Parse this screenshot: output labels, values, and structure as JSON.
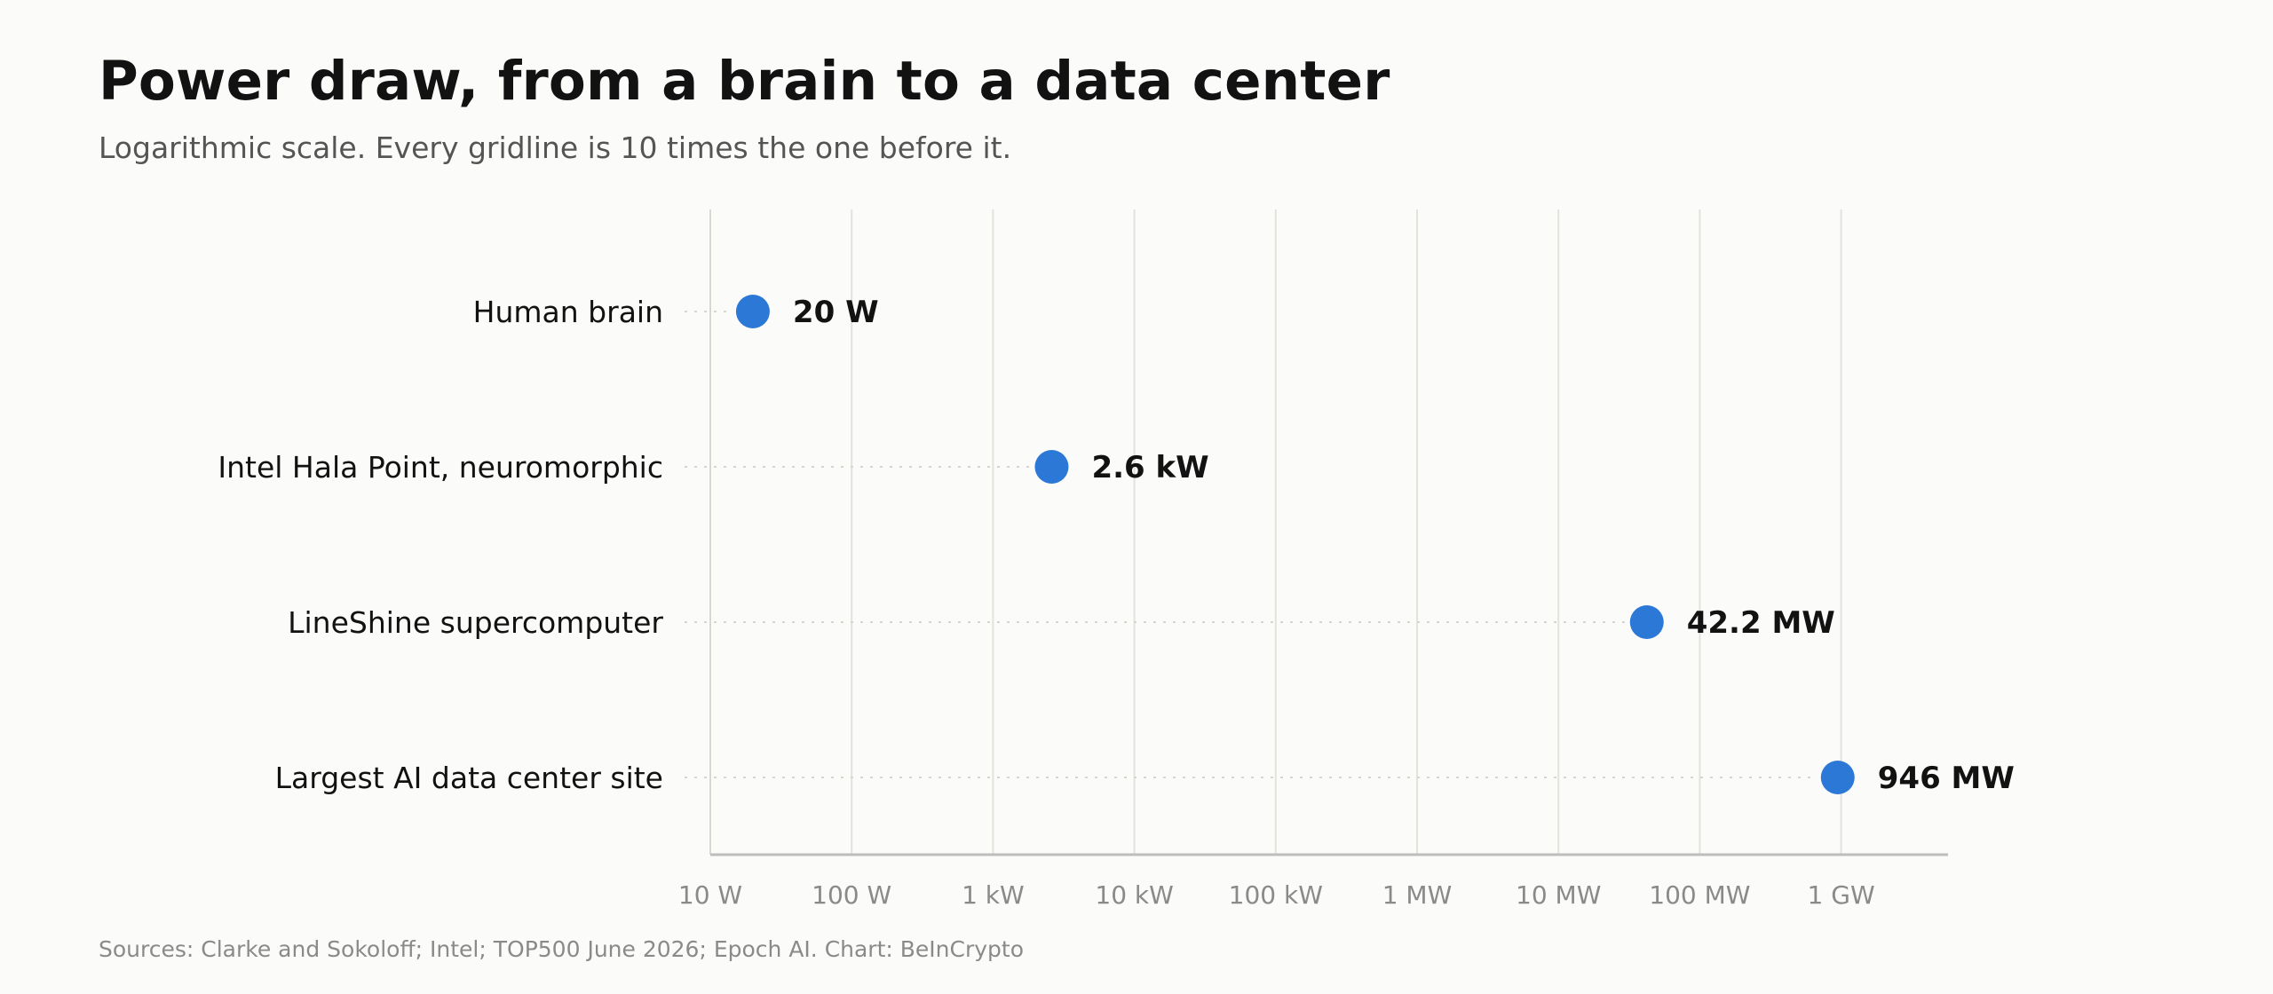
{
  "chart_data": {
    "type": "dot",
    "title": "Power draw, from a brain to a data center",
    "subtitle": "Logarithmic scale. Every gridline is 10 times the one before it.",
    "source": "Sources: Clarke and Sokoloff; Intel; TOP500 June 2026; Epoch AI. Chart: BeInCrypto",
    "x_scale": "log",
    "x_unit": "W",
    "xlim": [
      10,
      5000000000
    ],
    "x_ticks": [
      {
        "value": 10,
        "label": "10 W"
      },
      {
        "value": 100,
        "label": "100 W"
      },
      {
        "value": 1000,
        "label": "1 kW"
      },
      {
        "value": 10000,
        "label": "10 kW"
      },
      {
        "value": 100000,
        "label": "100 kW"
      },
      {
        "value": 1000000,
        "label": "1 MW"
      },
      {
        "value": 10000000,
        "label": "10 MW"
      },
      {
        "value": 100000000,
        "label": "100 MW"
      },
      {
        "value": 1000000000,
        "label": "1 GW"
      }
    ],
    "grid": true,
    "points": [
      {
        "category": "Human brain",
        "value": 20,
        "label": "20 W"
      },
      {
        "category": "Intel Hala Point, neuromorphic",
        "value": 2600,
        "label": "2.6 kW"
      },
      {
        "category": "LineShine supercomputer",
        "value": 42200000,
        "label": "42.2 MW"
      },
      {
        "category": "Largest AI data center site",
        "value": 946000000,
        "label": "946 MW"
      }
    ],
    "colors": {
      "dot": "#2b78d6",
      "grid": "#e3e3dc",
      "axis": "#bdbdbd",
      "leader": "#d6d6d0"
    }
  }
}
